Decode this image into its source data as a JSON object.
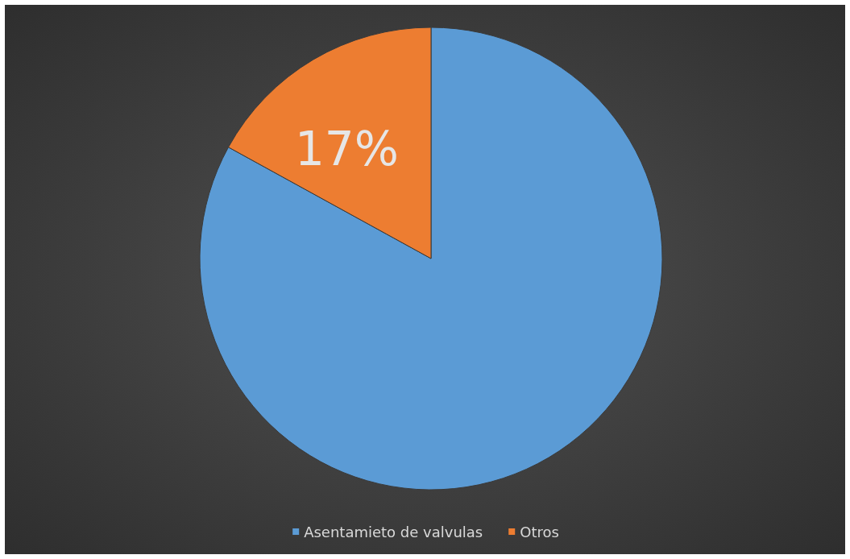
{
  "chart_data": {
    "type": "pie",
    "categories": [
      "Asentamieto de valvulas",
      "Otros"
    ],
    "values": [
      83,
      17
    ],
    "colors": [
      "#5b9bd5",
      "#ed7d31"
    ],
    "value_labels": [
      null,
      "17%"
    ],
    "legend": "bottom"
  }
}
